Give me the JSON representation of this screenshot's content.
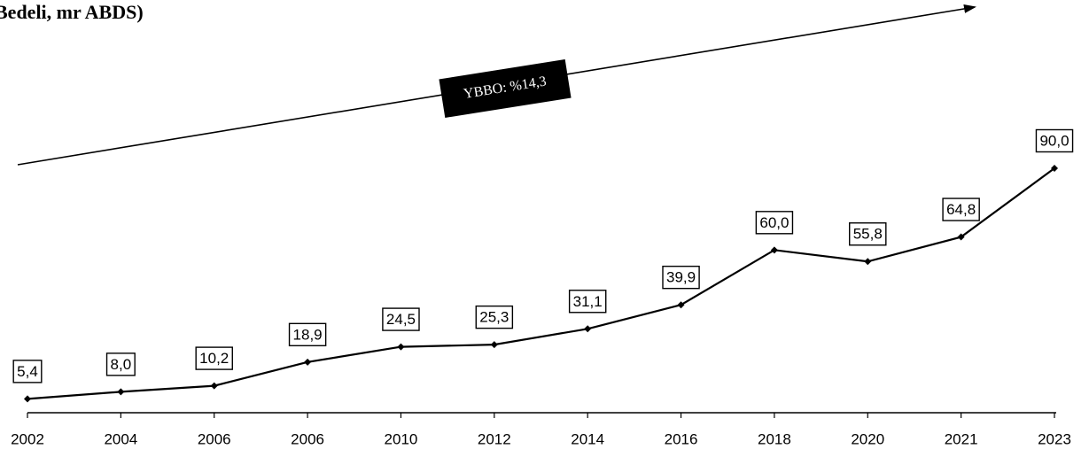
{
  "chart_data": {
    "type": "line",
    "title": "Bedeli, mr ABDS)",
    "annotation": "YBBO: %14,3",
    "categories": [
      "2002",
      "2004",
      "2006",
      "2006",
      "2010",
      "2012",
      "2014",
      "2016",
      "2018",
      "2020",
      "2021",
      "2023"
    ],
    "series": [
      {
        "color": "#000000",
        "values": [
          5.4,
          8.0,
          10.2,
          18.9,
          24.5,
          25.3,
          31.1,
          39.9,
          60.0,
          55.8,
          64.8,
          90.0
        ],
        "value_labels": [
          "5,4",
          "8,0",
          "10,2",
          "18,9",
          "24,5",
          "25,3",
          "31,1",
          "39,9",
          "60,0",
          "55,8",
          "64,8",
          "90,0"
        ]
      }
    ]
  }
}
